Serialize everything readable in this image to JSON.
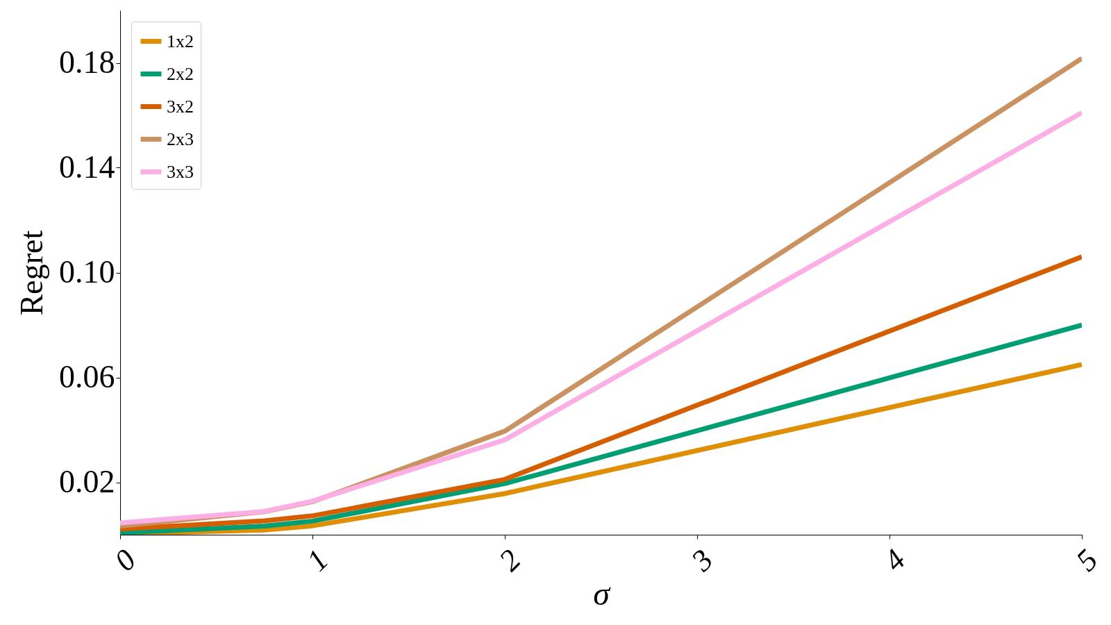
{
  "chart_data": {
    "type": "line",
    "xlabel": "σ",
    "ylabel": "Regret",
    "x": [
      0,
      0.75,
      1,
      2,
      5
    ],
    "series": [
      {
        "name": "1x2",
        "color": "#de8f05",
        "values": [
          0.0003,
          0.0018,
          0.0034,
          0.0157,
          0.0649
        ]
      },
      {
        "name": "2x2",
        "color": "#029e73",
        "values": [
          0.0007,
          0.0033,
          0.0052,
          0.0195,
          0.08
        ]
      },
      {
        "name": "3x2",
        "color": "#d55e00",
        "values": [
          0.0022,
          0.0053,
          0.0072,
          0.0211,
          0.106
        ]
      },
      {
        "name": "2x3",
        "color": "#ca9161",
        "values": [
          0.0033,
          0.0088,
          0.0126,
          0.0395,
          0.1817
        ]
      },
      {
        "name": "3x3",
        "color": "#fbafe4",
        "values": [
          0.0045,
          0.0089,
          0.0128,
          0.0362,
          0.161
        ]
      }
    ],
    "xlim": [
      0,
      5
    ],
    "xticks": [
      0,
      1,
      2,
      3,
      4,
      5
    ],
    "ylim": [
      0,
      0.2
    ],
    "yticks": [
      {
        "value": 0.02,
        "label": "0.02"
      },
      {
        "value": 0.06,
        "label": "0.06"
      },
      {
        "value": 0.1,
        "label": "0.10"
      },
      {
        "value": 0.14,
        "label": "0.14"
      },
      {
        "value": 0.18,
        "label": "0.18"
      }
    ],
    "grid": false,
    "legend": "top left",
    "marker": "none",
    "line_style": "solid"
  }
}
